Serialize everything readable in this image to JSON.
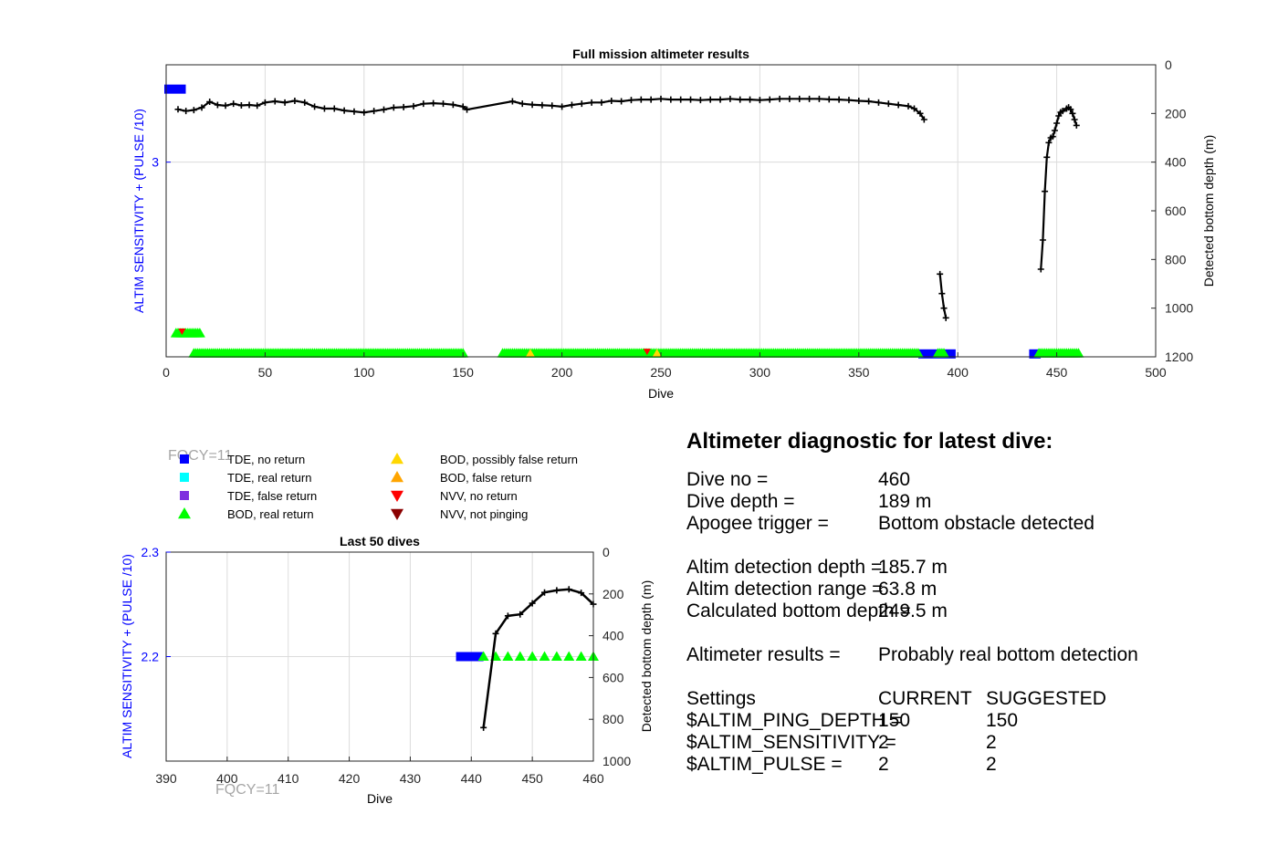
{
  "colors": {
    "tde_no_return": "#0000ff",
    "tde_real_return": "#00ffff",
    "tde_false_return": "#7e2fdf",
    "bod_real_return": "#00ff00",
    "bod_possibly_false": "#ffd700",
    "bod_false": "#ffa500",
    "nvv_no_return": "#ff0000",
    "nvv_not_pinging": "#8b0000",
    "depth_line": "#000000",
    "left_axis": "#0000ff",
    "grid": "#dcdcdc"
  },
  "chart_data": [
    {
      "id": "full",
      "type": "scatter",
      "title": "Full mission altimeter results",
      "xlabel": "Dive",
      "ylabel_left": "ALTIM SENSITIVITY + (PULSE /10)",
      "ylabel_right": "Detected bottom depth (m)",
      "xlim": [
        0,
        500
      ],
      "ylim_right": [
        0,
        1200
      ],
      "right_reversed": true,
      "xticks": [
        "0",
        "50",
        "100",
        "150",
        "200",
        "250",
        "300",
        "350",
        "400",
        "450",
        "500"
      ],
      "yticks_left": [
        "3"
      ],
      "yticks_right": [
        "0",
        "200",
        "400",
        "600",
        "800",
        "1000",
        "1200"
      ],
      "grid": true,
      "depth_series": [
        [
          [
            6,
            183
          ],
          [
            10,
            190
          ],
          [
            14,
            186
          ],
          [
            18,
            176
          ],
          [
            22,
            152
          ],
          [
            26,
            165
          ],
          [
            30,
            168
          ],
          [
            34,
            160
          ],
          [
            38,
            167
          ],
          [
            42,
            165
          ],
          [
            46,
            168
          ],
          [
            50,
            155
          ],
          [
            55,
            150
          ],
          [
            60,
            155
          ],
          [
            65,
            148
          ],
          [
            70,
            155
          ],
          [
            75,
            172
          ],
          [
            80,
            180
          ],
          [
            85,
            180
          ],
          [
            90,
            188
          ],
          [
            95,
            192
          ],
          [
            100,
            196
          ],
          [
            105,
            190
          ],
          [
            110,
            184
          ],
          [
            115,
            176
          ],
          [
            120,
            174
          ],
          [
            125,
            170
          ],
          [
            130,
            160
          ],
          [
            135,
            158
          ],
          [
            140,
            160
          ],
          [
            145,
            164
          ],
          [
            150,
            172
          ],
          [
            152,
            184
          ],
          [
            175,
            150
          ],
          [
            180,
            160
          ],
          [
            185,
            164
          ],
          [
            190,
            166
          ],
          [
            195,
            168
          ],
          [
            200,
            172
          ],
          [
            205,
            165
          ],
          [
            210,
            160
          ],
          [
            215,
            155
          ],
          [
            220,
            155
          ],
          [
            225,
            148
          ],
          [
            230,
            150
          ],
          [
            235,
            145
          ],
          [
            240,
            143
          ],
          [
            245,
            143
          ],
          [
            250,
            140
          ],
          [
            255,
            143
          ],
          [
            260,
            143
          ],
          [
            265,
            143
          ],
          [
            270,
            145
          ],
          [
            275,
            143
          ],
          [
            280,
            143
          ],
          [
            285,
            140
          ],
          [
            290,
            143
          ],
          [
            295,
            143
          ],
          [
            300,
            145
          ],
          [
            305,
            143
          ],
          [
            310,
            140
          ],
          [
            315,
            140
          ],
          [
            320,
            140
          ],
          [
            325,
            140
          ],
          [
            330,
            140
          ],
          [
            335,
            142
          ],
          [
            340,
            143
          ],
          [
            345,
            145
          ],
          [
            350,
            148
          ],
          [
            355,
            150
          ],
          [
            360,
            155
          ],
          [
            365,
            160
          ],
          [
            370,
            165
          ],
          [
            375,
            170
          ],
          [
            378,
            180
          ],
          [
            381,
            200
          ],
          [
            383,
            225
          ]
        ],
        [
          [
            391,
            860
          ],
          [
            392,
            940
          ],
          [
            393,
            1000
          ],
          [
            394,
            1040
          ]
        ],
        [
          [
            442,
            840
          ],
          [
            443,
            720
          ],
          [
            444,
            520
          ],
          [
            445,
            380
          ],
          [
            446,
            320
          ],
          [
            447,
            300
          ],
          [
            448,
            295
          ],
          [
            449,
            270
          ],
          [
            450,
            240
          ],
          [
            451,
            210
          ],
          [
            452,
            195
          ],
          [
            453,
            190
          ],
          [
            455,
            180
          ],
          [
            456,
            175
          ],
          [
            457,
            183
          ],
          [
            458,
            200
          ],
          [
            459,
            225
          ],
          [
            460,
            249
          ]
        ]
      ],
      "tde_no_return_segments": [
        [
          0,
          9
        ],
        [
          381,
          398
        ],
        [
          437,
          441
        ]
      ],
      "bod_low_segments": [
        [
          5,
          17
        ]
      ],
      "bod_row_segments": [
        [
          14,
          150
        ],
        [
          170,
          380
        ],
        [
          390,
          393
        ],
        [
          441,
          461
        ]
      ],
      "bod_possibly_false_dives": [
        184,
        248
      ],
      "nvv_no_return_dives": [
        8,
        243
      ],
      "nvv_not_pinging_dives": []
    },
    {
      "id": "last50",
      "type": "scatter",
      "title": "Last 50 dives",
      "xlabel": "Dive",
      "ylabel_left": "ALTIM SENSITIVITY + (PULSE /10)",
      "ylabel_right": "Detected bottom depth (m)",
      "xlim": [
        390,
        460
      ],
      "ylim_left": [
        2.1,
        2.3
      ],
      "ylim_right": [
        0,
        1000
      ],
      "right_reversed": true,
      "xticks": [
        "390",
        "400",
        "410",
        "420",
        "430",
        "440",
        "450",
        "460"
      ],
      "yticks_left": [
        "2.2",
        "2.3"
      ],
      "yticks_right": [
        "0",
        "200",
        "400",
        "600",
        "800",
        "1000"
      ],
      "grid": true,
      "depth_series": [
        [
          [
            442,
            840
          ],
          [
            444,
            390
          ],
          [
            446,
            305
          ],
          [
            448,
            298
          ],
          [
            450,
            245
          ],
          [
            452,
            193
          ],
          [
            454,
            183
          ],
          [
            456,
            178
          ],
          [
            458,
            195
          ],
          [
            460,
            249
          ]
        ]
      ],
      "tde_no_return_segments": [
        [
          437.5,
          442
        ]
      ],
      "bod_real_return_dives": [
        442,
        444,
        446,
        448,
        450,
        452,
        454,
        456,
        458,
        460
      ],
      "tde_no_return_level": 2.2
    }
  ],
  "legend": {
    "items": [
      {
        "label": "TDE, no return",
        "marker": "square",
        "color": "#0000ff"
      },
      {
        "label": "TDE, real return",
        "marker": "square",
        "color": "#00ffff"
      },
      {
        "label": "TDE, false return",
        "marker": "square",
        "color": "#7e2fdf"
      },
      {
        "label": "BOD, real return",
        "marker": "triangle-up",
        "color": "#00ff00"
      },
      {
        "label": "BOD, possibly false return",
        "marker": "triangle-up",
        "color": "#ffd700"
      },
      {
        "label": "BOD, false return",
        "marker": "triangle-up",
        "color": "#ffa500"
      },
      {
        "label": "NVV, no return",
        "marker": "triangle-down",
        "color": "#ff0000"
      },
      {
        "label": "NVV, not pinging",
        "marker": "triangle-down",
        "color": "#8b0000"
      }
    ]
  },
  "fqcy_label_legend": "FQCY=11",
  "fqcy_label_bottom": "FQCY=11",
  "diagnostic": {
    "title": "Altimeter diagnostic for latest dive:",
    "dive_no_label": "Dive no =",
    "dive_no_value": "460",
    "dive_depth_label": "Dive depth =",
    "dive_depth_value": "189 m",
    "apogee_label": "Apogee trigger =",
    "apogee_value": "Bottom obstacle detected",
    "altim_depth_label": "Altim detection depth =",
    "altim_depth_value": "185.7 m",
    "altim_range_label": "Altim detection range =",
    "altim_range_value": "63.8 m",
    "calc_bottom_label": "Calculated bottom depth =",
    "calc_bottom_value": "249.5 m",
    "results_label": "Altimeter results =",
    "results_value": "Probably real bottom detection",
    "settings_label": "Settings",
    "current_label": "CURRENT",
    "suggested_label": "SUGGESTED",
    "ping_depth_label": "$ALTIM_PING_DEPTH =",
    "ping_depth_current": "150",
    "ping_depth_suggested": "150",
    "sensitivity_label": "$ALTIM_SENSITIVITY =",
    "sensitivity_current": "2",
    "sensitivity_suggested": "2",
    "pulse_label": "$ALTIM_PULSE =",
    "pulse_current": "2",
    "pulse_suggested": "2"
  }
}
